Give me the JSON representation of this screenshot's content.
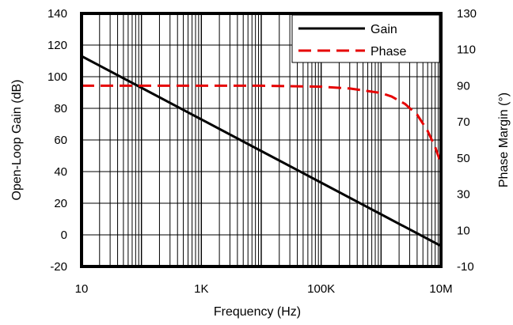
{
  "chart_data": {
    "type": "line",
    "xlabel": "Frequency (Hz)",
    "ylabel_left": "Open-Loop Gain (dB)",
    "ylabel_right": "Phase Margin (°)",
    "x_scale": "log",
    "xlim": [
      10,
      10000000
    ],
    "x_ticks": [
      {
        "value": 10,
        "label": "10"
      },
      {
        "value": 1000,
        "label": "1K"
      },
      {
        "value": 100000,
        "label": "100K"
      },
      {
        "value": 10000000,
        "label": "10M"
      }
    ],
    "ylim_left": [
      -20,
      140
    ],
    "y_ticks_left": [
      "-20",
      "0",
      "20",
      "40",
      "60",
      "80",
      "100",
      "120",
      "140"
    ],
    "ylim_right": [
      -10,
      130
    ],
    "y_ticks_right": [
      "-10",
      "10",
      "30",
      "50",
      "70",
      "90",
      "110",
      "130"
    ],
    "grid": true,
    "legend_position": "top-right",
    "series": [
      {
        "name": "Gain",
        "axis": "left",
        "color": "#000000",
        "style": "solid",
        "x": [
          10,
          100,
          1000,
          10000,
          100000,
          1000000,
          10000000
        ],
        "y": [
          113,
          93,
          73,
          53,
          33,
          13,
          -7
        ]
      },
      {
        "name": "Phase",
        "axis": "right",
        "color": "#e60000",
        "style": "dashed",
        "x": [
          10,
          100,
          1000,
          10000,
          100000,
          300000,
          1000000,
          1500000,
          2500000,
          4000000,
          6000000,
          8000000,
          10000000
        ],
        "y": [
          90,
          90,
          90,
          90,
          89.5,
          88.5,
          86,
          84,
          80,
          74,
          65,
          56,
          47
        ]
      }
    ]
  }
}
